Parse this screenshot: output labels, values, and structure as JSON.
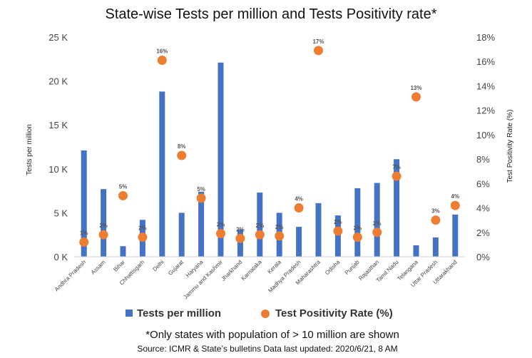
{
  "chart_data": {
    "type": "bar",
    "title": "State-wise Tests per million and Tests Positivity rate*",
    "categories": [
      "Andhra Pradesh",
      "Assam",
      "Bihar",
      "Chhattisgarh",
      "Delhi",
      "Gujarat",
      "Haryana",
      "Jammu and Kashmir",
      "Jharkhand",
      "Karnataka",
      "Kerala",
      "Madhya Pradesh",
      "Maharashtra",
      "Odisha",
      "Punjab",
      "Rajasthan",
      "Tamil Nadu",
      "Telangana",
      "Uttar Pradesh",
      "Uttarakhand"
    ],
    "series": [
      {
        "name": "Tests per million",
        "kind": "bar",
        "axis": "left",
        "color": "#4472C4",
        "values": [
          12100,
          7700,
          1200,
          4200,
          18800,
          5000,
          7400,
          22100,
          3100,
          7300,
          5000,
          3400,
          6100,
          4700,
          7800,
          8400,
          11100,
          1300,
          2200,
          4800
        ]
      },
      {
        "name": "Test Positivity Rate (%)",
        "kind": "scatter",
        "axis": "right",
        "color": "#ED7D31",
        "values": [
          1.2,
          1.8,
          5,
          1.6,
          16.1,
          8.3,
          4.8,
          1.9,
          1.5,
          1.8,
          1.7,
          4,
          16.9,
          2.1,
          1.6,
          2.0,
          6.6,
          13.1,
          3,
          4.2
        ],
        "labels": [
          "1%",
          "2%",
          "5%",
          "2%",
          "16%",
          "8%",
          "5%",
          "2%",
          "2%",
          "2%",
          "2%",
          "4%",
          "17%",
          "2%",
          "2%",
          "2%",
          "7%",
          "13%",
          "3%",
          "4%"
        ]
      }
    ],
    "ylabel": "Tests per million",
    "y2label": "Test Positivity Rate (%)",
    "ylim": [
      0,
      25000
    ],
    "y2lim": [
      0,
      18
    ],
    "yticks": [
      "0 K",
      "5 K",
      "10 K",
      "15 K",
      "20 K",
      "25 K"
    ],
    "y2ticks": [
      "0%",
      "2%",
      "4%",
      "6%",
      "8%",
      "10%",
      "12%",
      "14%",
      "16%",
      "18%"
    ],
    "grid": false,
    "legend_position": "bottom"
  },
  "footnote": "*Only states with population of  > 10 million are shown",
  "source": "Source: ICMR & State’s bulletins Data last updated: 2020/6/21, 8 AM"
}
